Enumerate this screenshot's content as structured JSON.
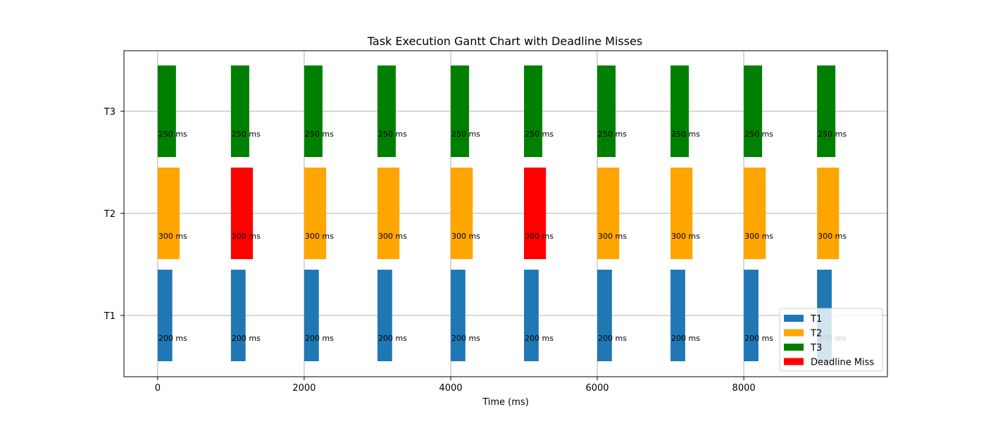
{
  "chart_data": {
    "type": "gantt",
    "title": "Task Execution Gantt Chart with Deadline Misses",
    "xlabel": "Time (ms)",
    "ylabel": "",
    "xlim": [
      -460,
      9960
    ],
    "x_ticks": [
      0,
      2000,
      4000,
      6000,
      8000
    ],
    "y_categories": [
      "T1",
      "T2",
      "T3"
    ],
    "grid": true,
    "legend_position": "bottom-right",
    "legend": [
      {
        "label": "T1",
        "color": "#1f77b4"
      },
      {
        "label": "T2",
        "color": "#ffa500"
      },
      {
        "label": "T3",
        "color": "#008000"
      },
      {
        "label": "Deadline Miss",
        "color": "#ff0000"
      }
    ],
    "series": [
      {
        "name": "T1",
        "color": "#1f77b4",
        "duration": 200,
        "label": "200 ms",
        "starts": [
          0,
          1000,
          2000,
          3000,
          4000,
          5000,
          6000,
          7000,
          8000,
          9000
        ],
        "deadline_miss": [
          false,
          false,
          false,
          false,
          false,
          false,
          false,
          false,
          false,
          false
        ]
      },
      {
        "name": "T2",
        "color": "#ffa500",
        "duration": 300,
        "label": "300 ms",
        "starts": [
          0,
          1000,
          2000,
          3000,
          4000,
          5000,
          6000,
          7000,
          8000,
          9000
        ],
        "deadline_miss": [
          false,
          true,
          false,
          false,
          false,
          true,
          false,
          false,
          false,
          false
        ]
      },
      {
        "name": "T3",
        "color": "#008000",
        "duration": 250,
        "label": "250 ms",
        "starts": [
          0,
          1000,
          2000,
          3000,
          4000,
          5000,
          6000,
          7000,
          8000,
          9000
        ],
        "deadline_miss": [
          false,
          false,
          false,
          false,
          false,
          false,
          false,
          false,
          false,
          false
        ]
      }
    ],
    "deadline_miss_color": "#ff0000"
  }
}
